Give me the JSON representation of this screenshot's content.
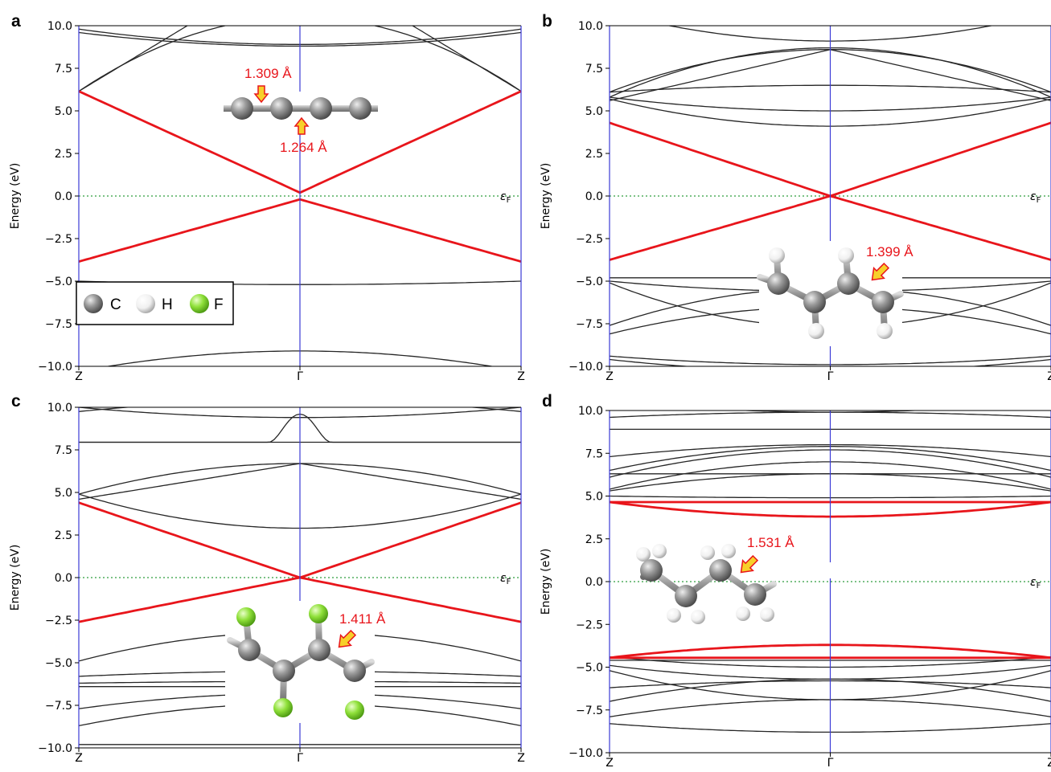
{
  "chart_data": [
    {
      "panel": "a",
      "type": "line",
      "xlabel": "",
      "ylabel": "Energy (eV)",
      "xticks": [
        "Z",
        "Γ",
        "Z"
      ],
      "ylim": [
        -10.0,
        10.0
      ],
      "yticks": [
        "−10.0",
        "−7.5",
        "−5.0",
        "−2.5",
        "0.0",
        "2.5",
        "5.0",
        "7.5",
        "10.0"
      ],
      "fermi_label": "εF",
      "fermi_level": 0.0,
      "grid": false,
      "annotations": [
        "1.309 Å",
        "1.264 Å"
      ],
      "legend": [
        "C",
        "H",
        "F"
      ],
      "legend_position": "lower-left",
      "highlight_bands": [
        {
          "name": "",
          "color": "#e8151b",
          "edge": 6.15,
          "center": 0.2,
          "shape": "v"
        },
        {
          "name": "",
          "color": "#e8151b",
          "edge": -3.85,
          "center": -0.2,
          "shape": "v"
        }
      ],
      "bands": [
        {
          "edge": 9.8,
          "center": 8.9,
          "shape": "parabola"
        },
        {
          "edge": 9.6,
          "center": 8.8,
          "shape": "parabola"
        },
        {
          "edge": 6.15,
          "center": 10.5,
          "shape": "parabola"
        },
        {
          "edge": 6.15,
          "center": 14.0,
          "shape": "v"
        },
        {
          "edge": -5.0,
          "center": -5.2,
          "shape": "parabola"
        },
        {
          "edge": -10.3,
          "center": -9.1,
          "shape": "parabola"
        }
      ]
    },
    {
      "panel": "b",
      "type": "line",
      "xlabel": "",
      "ylabel": "Energy (eV)",
      "xticks": [
        "Z",
        "Γ",
        "Z"
      ],
      "ylim": [
        -10.0,
        10.0
      ],
      "yticks": [
        "−10.0",
        "−7.5",
        "−5.0",
        "−2.5",
        "0.0",
        "2.5",
        "5.0",
        "7.5",
        "10.0"
      ],
      "fermi_label": "εF",
      "fermi_level": 0.0,
      "grid": false,
      "annotations": [
        "1.399 Å"
      ],
      "highlight_bands": [
        {
          "name": "",
          "color": "#e8151b",
          "edge": 4.3,
          "center": 0.0,
          "shape": "v"
        },
        {
          "name": "",
          "color": "#e8151b",
          "edge": -3.75,
          "center": 0.0,
          "shape": "v"
        }
      ],
      "bands": [
        {
          "edge": 10.8,
          "center": 9.1,
          "shape": "parabola"
        },
        {
          "edge": 6.1,
          "center": 8.6,
          "shape": "parabola"
        },
        {
          "edge": 5.8,
          "center": 8.7,
          "shape": "parabola"
        },
        {
          "edge": 6.1,
          "center": 6.5,
          "shape": "parabola"
        },
        {
          "edge": 5.6,
          "center": 8.6,
          "shape": "v"
        },
        {
          "edge": 5.7,
          "center": 4.1,
          "shape": "parabola"
        },
        {
          "edge": 5.8,
          "center": 5.0,
          "shape": "parabola"
        },
        {
          "edge": -4.8,
          "center": -4.8,
          "shape": "flat"
        },
        {
          "edge": -5.0,
          "center": -5.6,
          "shape": "parabola"
        },
        {
          "edge": -5.1,
          "center": -7.7,
          "shape": "parabola"
        },
        {
          "edge": -7.6,
          "center": -5.4,
          "shape": "parabola"
        },
        {
          "edge": -8.1,
          "center": -6.5,
          "shape": "parabola"
        },
        {
          "edge": -9.4,
          "center": -9.9,
          "shape": "parabola"
        },
        {
          "edge": -9.6,
          "center": -10.3,
          "shape": "parabola"
        }
      ]
    },
    {
      "panel": "c",
      "type": "line",
      "xlabel": "",
      "ylabel": "Energy (eV)",
      "xticks": [
        "Z",
        "Γ",
        "Z"
      ],
      "ylim": [
        -10.0,
        10.0
      ],
      "yticks": [
        "−10.0",
        "−7.5",
        "−5.0",
        "−2.5",
        "0.0",
        "2.5",
        "5.0",
        "7.5",
        "10.0"
      ],
      "fermi_label": "εF",
      "fermi_level": 0.0,
      "grid": false,
      "annotations": [
        "1.411 Å"
      ],
      "highlight_bands": [
        {
          "name": "",
          "color": "#e8151b",
          "edge": 4.4,
          "center": 0.0,
          "shape": "v"
        },
        {
          "name": "",
          "color": "#e8151b",
          "edge": -2.6,
          "center": 0.0,
          "shape": "v"
        }
      ],
      "bands": [
        {
          "edge": 10.0,
          "center": 9.4,
          "shape": "parabola"
        },
        {
          "edge": 9.75,
          "center": 10.4,
          "shape": "parabola"
        },
        {
          "edge": 7.95,
          "center": 7.95,
          "shape": "flat"
        },
        {
          "edge": 7.95,
          "center": 9.6,
          "shape": "hump"
        },
        {
          "edge": 4.9,
          "center": 6.7,
          "shape": "parabola"
        },
        {
          "edge": 4.6,
          "center": 6.7,
          "shape": "v"
        },
        {
          "edge": 4.9,
          "center": 2.9,
          "shape": "parabola"
        },
        {
          "edge": -4.9,
          "center": -3.2,
          "shape": "parabola"
        },
        {
          "edge": -5.8,
          "center": -5.5,
          "shape": "parabola"
        },
        {
          "edge": -6.2,
          "center": -6.1,
          "shape": "parabola"
        },
        {
          "edge": -6.4,
          "center": -6.4,
          "shape": "flat"
        },
        {
          "edge": -7.7,
          "center": -6.8,
          "shape": "parabola"
        },
        {
          "edge": -8.7,
          "center": -7.4,
          "shape": "parabola"
        },
        {
          "edge": -9.8,
          "center": -9.8,
          "shape": "flat"
        }
      ]
    },
    {
      "panel": "d",
      "type": "line",
      "xlabel": "",
      "ylabel": "Energy (eV)",
      "xticks": [
        "Z",
        "Γ",
        "Z"
      ],
      "ylim": [
        -10.0,
        10.0
      ],
      "yticks": [
        "−10.0",
        "−7.5",
        "−5.0",
        "−2.5",
        "0.0",
        "2.5",
        "5.0",
        "7.5",
        "10.0"
      ],
      "fermi_label": "εF",
      "fermi_level": 0.0,
      "grid": false,
      "annotations": [
        "1.531 Å"
      ],
      "highlight_bands": [
        {
          "name": "",
          "color": "#e8151b",
          "edge": 4.65,
          "center": 3.8,
          "shape": "parabola"
        },
        {
          "name": "",
          "color": "#e8151b",
          "edge": 4.65,
          "center": 4.65,
          "shape": "flat"
        },
        {
          "name": "",
          "color": "#e8151b",
          "edge": -4.45,
          "center": -3.7,
          "shape": "parabola"
        },
        {
          "name": "",
          "color": "#e8151b",
          "edge": -4.45,
          "center": -4.45,
          "shape": "flat"
        }
      ],
      "bands": [
        {
          "edge": 10.6,
          "center": 9.9,
          "shape": "parabola"
        },
        {
          "edge": 9.6,
          "center": 9.9,
          "shape": "parabola"
        },
        {
          "edge": 8.9,
          "center": 8.9,
          "shape": "flat"
        },
        {
          "edge": 7.3,
          "center": 8.0,
          "shape": "parabola"
        },
        {
          "edge": 6.5,
          "center": 7.9,
          "shape": "parabola"
        },
        {
          "edge": 6.1,
          "center": 7.7,
          "shape": "parabola"
        },
        {
          "edge": 5.4,
          "center": 7.0,
          "shape": "parabola"
        },
        {
          "edge": 5.3,
          "center": 6.3,
          "shape": "parabola"
        },
        {
          "edge": 6.3,
          "center": 6.3,
          "shape": "flat"
        },
        {
          "edge": 5.0,
          "center": 4.9,
          "shape": "parabola"
        },
        {
          "edge": -4.4,
          "center": -5.0,
          "shape": "parabola"
        },
        {
          "edge": -4.6,
          "center": -4.6,
          "shape": "flat"
        },
        {
          "edge": -4.9,
          "center": -5.7,
          "shape": "parabola"
        },
        {
          "edge": -5.2,
          "center": -6.9,
          "shape": "parabola"
        },
        {
          "edge": -6.2,
          "center": -5.8,
          "shape": "parabola"
        },
        {
          "edge": -7.0,
          "center": -5.7,
          "shape": "parabola"
        },
        {
          "edge": -7.9,
          "center": -6.9,
          "shape": "parabola"
        },
        {
          "edge": -8.3,
          "center": -8.8,
          "shape": "parabola"
        }
      ]
    }
  ],
  "colors": {
    "highlight": "#e8151b",
    "band": "#262626",
    "gamma_line": "#3b3bd6",
    "fermi_line": "#2f9e3f",
    "carbon": "#8c8c8c",
    "hydrogen": "#f2f2f2",
    "fluorine": "#8fe03a",
    "arrow_fill": "#f7d02a"
  },
  "panel_labels": [
    "a",
    "b",
    "c",
    "d"
  ]
}
